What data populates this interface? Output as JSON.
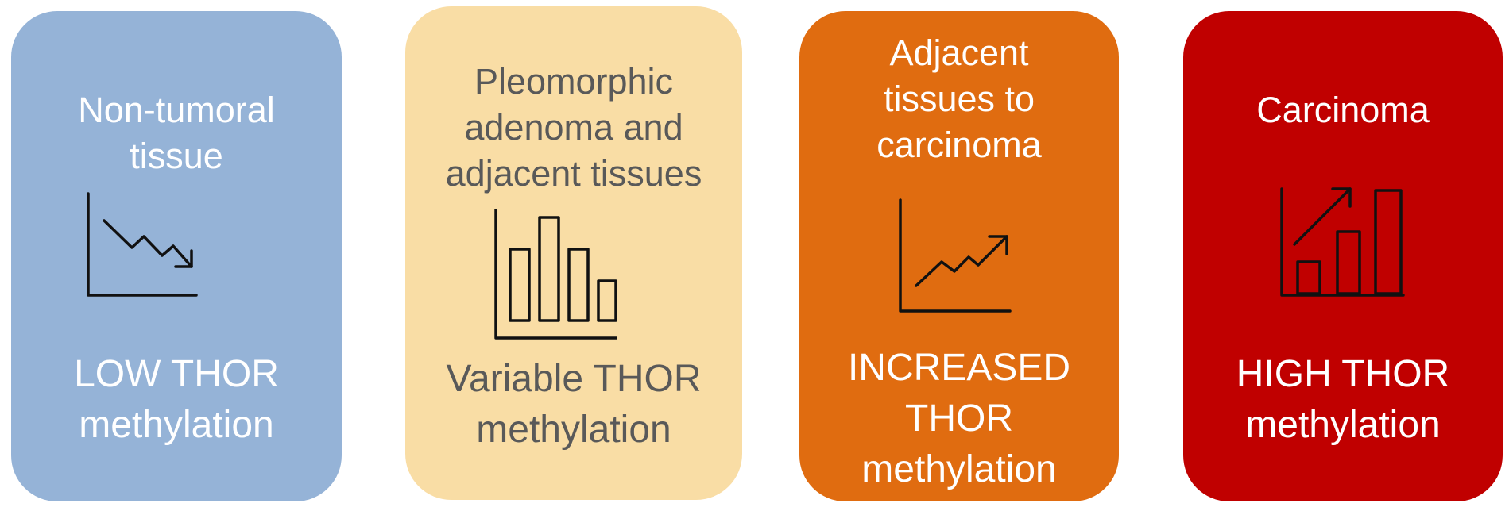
{
  "cards": [
    {
      "title": "Non-tumoral\ntissue",
      "result": "LOW THOR\nmethylation",
      "icon": "line-chart-decreasing-icon",
      "color": "#95b3d7"
    },
    {
      "title": "Pleomorphic\nadenoma and\nadjacent tissues",
      "result": "Variable THOR\nmethylation",
      "icon": "bar-chart-variable-icon",
      "color": "#f9dda5"
    },
    {
      "title": "Adjacent\ntissues to\ncarcinoma",
      "result": "INCREASED\nTHOR\nmethylation",
      "icon": "line-chart-increasing-icon",
      "color": "#e06c10"
    },
    {
      "title": "Carcinoma",
      "result": "HIGH THOR\nmethylation",
      "icon": "bar-chart-increasing-icon",
      "color": "#c00000"
    }
  ]
}
